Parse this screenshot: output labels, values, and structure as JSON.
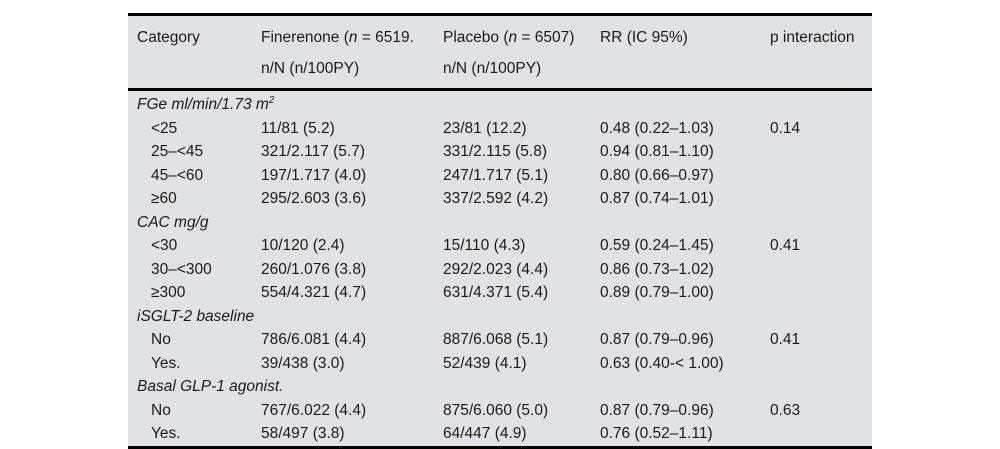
{
  "table": {
    "background": "#dfe3e5",
    "text_color": "#1a1a1a",
    "border_color": "#000000",
    "header": {
      "category": "Category",
      "finerenone": {
        "pre": "Finerenone (",
        "n": "n",
        "post": " = 6519.",
        "line2": "n/N (n/100PY)"
      },
      "placebo": {
        "pre": "Placebo (",
        "n": "n",
        "post": " = 6507)",
        "line2": "n/N (n/100PY)"
      },
      "rr": "RR (IC 95%)",
      "p_interaction": "p interaction"
    },
    "sections": [
      {
        "title": "FGe ml/min/1.73 m",
        "title_sup": "2",
        "rows": [
          {
            "category": "<25",
            "finerenone": "11/81 (5.2)",
            "placebo": "23/81 (12.2)",
            "rr": "0.48 (0.22–1.03)",
            "p": "0.14"
          },
          {
            "category": "25–<45",
            "finerenone": "321/2.117 (5.7)",
            "placebo": "331/2.115 (5.8)",
            "rr": "0.94 (0.81–1.10)",
            "p": ""
          },
          {
            "category": "45–<60",
            "finerenone": "197/1.717 (4.0)",
            "placebo": "247/1.717 (5.1)",
            "rr": "0.80 (0.66–0.97)",
            "p": ""
          },
          {
            "category": "≥60",
            "finerenone": "295/2.603 (3.6)",
            "placebo": "337/2.592 (4.2)",
            "rr": "0.87 (0.74–1.01)",
            "p": ""
          }
        ]
      },
      {
        "title": "CAC mg/g",
        "title_sup": "",
        "rows": [
          {
            "category": "<30",
            "finerenone": "10/120 (2.4)",
            "placebo": "15/110 (4.3)",
            "rr": "0.59 (0.24–1.45)",
            "p": "0.41"
          },
          {
            "category": "30–<300",
            "finerenone": "260/1.076 (3.8)",
            "placebo": "292/2.023 (4.4)",
            "rr": "0.86 (0.73–1.02)",
            "p": ""
          },
          {
            "category": "≥300",
            "finerenone": "554/4.321 (4.7)",
            "placebo": "631/4.371 (5.4)",
            "rr": "0.89 (0.79–1.00)",
            "p": ""
          }
        ]
      },
      {
        "title": "iSGLT-2 baseline",
        "title_sup": "",
        "rows": [
          {
            "category": "No",
            "finerenone": "786/6.081 (4.4)",
            "placebo": "887/6.068 (5.1)",
            "rr": "0.87 (0.79–0.96)",
            "p": "0.41"
          },
          {
            "category": "Yes.",
            "finerenone": "39/438 (3.0)",
            "placebo": "52/439 (4.1)",
            "rr": "0.63 (0.40-< 1.00)",
            "p": ""
          }
        ]
      },
      {
        "title": "Basal GLP-1 agonist.",
        "title_sup": "",
        "rows": [
          {
            "category": "No",
            "finerenone": "767/6.022 (4.4)",
            "placebo": "875/6.060 (5.0)",
            "rr": "0.87 (0.79–0.96)",
            "p": "0.63"
          },
          {
            "category": "Yes.",
            "finerenone": "58/497 (3.8)",
            "placebo": "64/447 (4.9)",
            "rr": "0.76 (0.52–1.11)",
            "p": ""
          }
        ]
      }
    ]
  }
}
